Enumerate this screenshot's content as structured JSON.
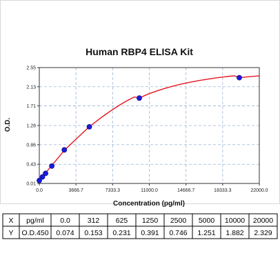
{
  "chart_data": {
    "type": "scatter",
    "title": "Human RBP4 ELISA Kit",
    "xlabel": "Concentration (pg/ml)",
    "ylabel": "O.D.",
    "xlim": [
      0.0,
      22000.0
    ],
    "ylim": [
      0.01,
      2.55
    ],
    "x_ticks": [
      "0.0",
      "3666.7",
      "7333.3",
      "11000.0",
      "14666.7",
      "18333.3",
      "22000.0"
    ],
    "x_tick_values": [
      0.0,
      3666.7,
      7333.3,
      11000.0,
      14666.7,
      18333.3,
      22000.0
    ],
    "y_ticks": [
      "0.01",
      "0.43",
      "0.86",
      "1.28",
      "1.71",
      "2.13",
      "2.55"
    ],
    "y_tick_values": [
      0.01,
      0.43,
      0.86,
      1.28,
      1.71,
      2.13,
      2.55
    ],
    "grid": true,
    "series": [
      {
        "x": [
          0,
          312,
          625,
          1250,
          2500,
          5000,
          10000,
          20000
        ],
        "y": [
          0.074,
          0.153,
          0.231,
          0.391,
          0.746,
          1.251,
          1.882,
          2.329
        ],
        "point_color": "#1a1adb",
        "fit_color": "#e8141e"
      }
    ],
    "fit_x": [
      0,
      500,
      1000,
      1500,
      2000,
      2500,
      3000,
      3500,
      4000,
      4500,
      5000,
      5500,
      6000,
      6500,
      7000,
      7500,
      8000,
      8500,
      9000,
      9500,
      10000,
      10500,
      11000,
      11500,
      12000,
      12500,
      13000,
      13500,
      14000,
      14500,
      15000,
      15500,
      16000,
      16500,
      17000,
      17500,
      18000,
      18500,
      19000,
      19500,
      20000,
      20500,
      21000,
      21500,
      22000
    ],
    "fit_y": [
      0.074,
      0.206,
      0.339,
      0.471,
      0.603,
      0.736,
      0.84,
      0.946,
      1.049,
      1.151,
      1.251,
      1.338,
      1.422,
      1.503,
      1.58,
      1.654,
      1.724,
      1.79,
      1.85,
      1.906,
      1.882,
      1.933,
      1.978,
      2.018,
      2.056,
      2.09,
      2.122,
      2.151,
      2.178,
      2.203,
      2.226,
      2.247,
      2.267,
      2.285,
      2.302,
      2.318,
      2.333,
      2.347,
      2.359,
      2.37,
      2.329,
      2.34,
      2.35,
      2.36,
      2.368
    ]
  },
  "table": {
    "x_row_label": "X",
    "y_row_label": "Y",
    "x_unit": "pg/ml",
    "y_unit": "O.D.450",
    "x_values": [
      "0.0",
      "312",
      "625",
      "1250",
      "2500",
      "5000",
      "10000",
      "20000"
    ],
    "y_values": [
      "0.074",
      "0.153",
      "0.231",
      "0.391",
      "0.746",
      "1.251",
      "1.882",
      "2.329"
    ]
  }
}
